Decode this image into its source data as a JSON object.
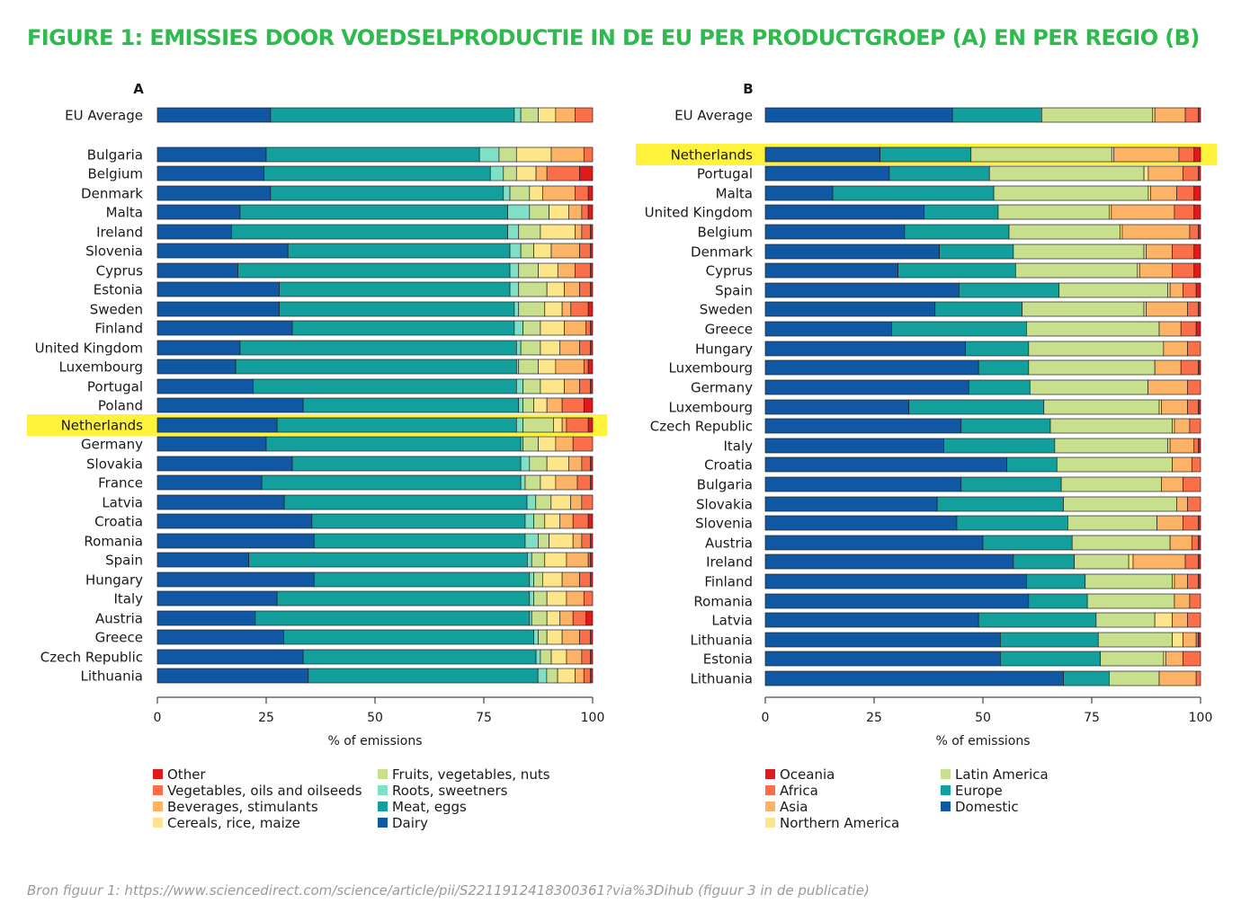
{
  "title": "FIGURE 1: EMISSIES DOOR VOEDSELPRODUCTIE IN DE EU PER PRODUCTGROEP (A) EN PER REGIO (B)",
  "source": "Bron figuur 1: https://www.sciencedirect.com/science/article/pii/S2211912418300361?via%3Dihub (figuur 3 in de publicatie)",
  "colors": {
    "highlight": "#fff23a"
  },
  "chart_data": [
    {
      "type": "bar",
      "orientation": "horizontal",
      "stacked": true,
      "panel_label": "A",
      "xlabel": "% of emissions",
      "xlim": [
        0,
        100
      ],
      "xticks": [
        0,
        25,
        50,
        75,
        100
      ],
      "highlight": "Netherlands",
      "categories": [
        "EU Average",
        "Bulgaria",
        "Belgium",
        "Denmark",
        "Malta",
        "Ireland",
        "Slovenia",
        "Cyprus",
        "Estonia",
        "Sweden",
        "Finland",
        "United Kingdom",
        "Luxembourg",
        "Portugal",
        "Poland",
        "Netherlands",
        "Germany",
        "Slovakia",
        "France",
        "Latvia",
        "Croatia",
        "Romania",
        "Spain",
        "Hungary",
        "Italy",
        "Austria",
        "Greece",
        "Czech Republic",
        "Lithuania"
      ],
      "series": [
        {
          "name": "Dairy",
          "color": "#1058a4",
          "values": [
            26,
            25,
            24.5,
            26,
            19,
            17,
            30,
            18.5,
            28,
            28,
            31,
            19,
            18,
            22,
            33.5,
            27.5,
            25,
            31,
            24,
            29,
            35.5,
            36,
            21,
            36,
            27.5,
            22.5,
            29,
            33.5,
            34.5
          ]
        },
        {
          "name": "Meat, eggs",
          "color": "#13a09c",
          "values": [
            56,
            49,
            52,
            53.5,
            61.5,
            63.5,
            51,
            62.5,
            53,
            54,
            51,
            63.5,
            64.5,
            60.5,
            49.5,
            55,
            58.5,
            52.5,
            59.5,
            55.5,
            49,
            48.5,
            64,
            49.5,
            58,
            63,
            57.5,
            53.5,
            52.5
          ]
        },
        {
          "name": "Roots, sweetners",
          "color": "#7fe0c6",
          "values": [
            1.5,
            4.5,
            3,
            1.5,
            5,
            2.5,
            2.5,
            2,
            2,
            1,
            2,
            1,
            0.5,
            1.5,
            1,
            1.5,
            0.5,
            2,
            1,
            2,
            2,
            3,
            1,
            1,
            1,
            0.5,
            1,
            1,
            2
          ]
        },
        {
          "name": "Fruits, vegetables, nuts",
          "color": "#c8e08e",
          "values": [
            4,
            4,
            3,
            4.5,
            4.5,
            5,
            3,
            4.5,
            6.5,
            6,
            4,
            4.5,
            4.5,
            4,
            2.5,
            7,
            3.5,
            4,
            3.5,
            3.5,
            2.5,
            2.5,
            3,
            2,
            3,
            3.5,
            2,
            2.5,
            2.5
          ]
        },
        {
          "name": "Cereals, rice, maize",
          "color": "#fde68a",
          "values": [
            4,
            8,
            4.5,
            3,
            4.5,
            8,
            4,
            4.5,
            4,
            4,
            5.5,
            4.5,
            4,
            5.5,
            3,
            2,
            4,
            5,
            3.5,
            4.5,
            3.5,
            5.5,
            5,
            4.5,
            4.5,
            3,
            3.5,
            3.5,
            4
          ]
        },
        {
          "name": "Beverages, stimulants",
          "color": "#fdb366",
          "values": [
            4.5,
            7.5,
            2.5,
            7.5,
            3,
            1.5,
            6.5,
            4,
            3.5,
            2,
            5,
            4.5,
            6.5,
            3.5,
            3.5,
            1,
            4,
            3,
            5,
            2.5,
            3,
            2,
            5,
            4,
            4,
            3,
            4,
            3.5,
            2
          ]
        },
        {
          "name": "Vegetables, oils and oilseeds",
          "color": "#fb6e4a",
          "values": [
            4,
            2,
            7.5,
            3,
            1.5,
            2,
            2.5,
            3.5,
            2.5,
            4,
            1,
            2.5,
            1,
            2.5,
            5,
            5,
            4.5,
            2,
            3,
            2.5,
            3.5,
            2,
            0.5,
            2.5,
            2,
            3,
            2.5,
            2,
            1.5
          ]
        },
        {
          "name": "Other",
          "color": "#e01a1a",
          "values": [
            0,
            0,
            3,
            1,
            1,
            0.5,
            0.5,
            0.5,
            0.5,
            1,
            0.5,
            0.5,
            1,
            0.5,
            2,
            1,
            0,
            0.5,
            0.5,
            0,
            1,
            0.5,
            0.5,
            0.5,
            0,
            1.5,
            0.5,
            0.5,
            0.5
          ]
        }
      ],
      "legend": {
        "columns": [
          [
            "Other",
            "Vegetables, oils and oilseeds",
            "Beverages, stimulants",
            "Cereals, rice, maize"
          ],
          [
            "Fruits, vegetables, nuts",
            "Roots, sweetners",
            "Meat, eggs",
            "Dairy"
          ]
        ]
      }
    },
    {
      "type": "bar",
      "orientation": "horizontal",
      "stacked": true,
      "panel_label": "B",
      "xlabel": "% of emissions",
      "xlim": [
        0,
        100
      ],
      "xticks": [
        0,
        25,
        50,
        75,
        100
      ],
      "highlight": "Netherlands",
      "categories": [
        "EU Average",
        "Netherlands",
        "Portugal",
        "Malta",
        "United Kingdom",
        "Belgium",
        "Denmark",
        "Cyprus",
        "Spain",
        "Sweden",
        "Greece",
        "Hungary",
        "Luxembourg",
        "Germany",
        "Luxembourg",
        "Czech Republic",
        "Italy",
        "Croatia",
        "Bulgaria",
        "Slovakia",
        "Slovenia",
        "Austria",
        "Ireland",
        "Finland",
        "Romania",
        "Latvia",
        "Lithuania",
        "Estonia",
        "Lithuania"
      ],
      "series": [
        {
          "name": "Domestic",
          "color": "#1058a4",
          "values": [
            43,
            26.5,
            28.5,
            15.5,
            36.5,
            32,
            40,
            30.5,
            44.5,
            39,
            29,
            46,
            49,
            46.5,
            33,
            45,
            41,
            55.5,
            45,
            39.5,
            44,
            50,
            57,
            60,
            60.5,
            49,
            54,
            54,
            68.5
          ]
        },
        {
          "name": "Europe",
          "color": "#13a09c",
          "values": [
            20.5,
            21,
            23,
            37,
            17,
            24,
            17,
            27,
            23,
            20,
            31,
            14.5,
            11.5,
            14,
            31,
            20.5,
            25.5,
            11.5,
            23,
            29,
            25.5,
            20.5,
            14,
            13.5,
            13.5,
            27,
            22.5,
            23,
            10.5
          ]
        },
        {
          "name": "Latin America",
          "color": "#c8e08e",
          "values": [
            25.5,
            32.5,
            35.5,
            35.5,
            25.5,
            25.5,
            30,
            28,
            25,
            28,
            30.5,
            31,
            29,
            27,
            26.5,
            28,
            26,
            26.5,
            23,
            26,
            20.5,
            22.5,
            12.5,
            20,
            20,
            13.5,
            17,
            14.5,
            11.5
          ]
        },
        {
          "name": "Northern America",
          "color": "#fde68a",
          "values": [
            0.5,
            0.5,
            1,
            0.5,
            0.5,
            0.5,
            0.5,
            0.5,
            0.5,
            0.5,
            0,
            0,
            0,
            0,
            0.5,
            0.5,
            0.5,
            0,
            0,
            0,
            0,
            0,
            1,
            0.5,
            0,
            4,
            2.5,
            0.5,
            0
          ]
        },
        {
          "name": "Asia",
          "color": "#fdb366",
          "values": [
            7,
            15,
            8,
            6,
            14.5,
            15.5,
            6,
            7.5,
            3,
            9.5,
            5,
            5.5,
            6,
            9,
            6,
            3.5,
            5.5,
            4.5,
            5,
            2.5,
            6,
            5,
            12,
            3,
            3.5,
            3.5,
            3,
            4,
            8.5
          ]
        },
        {
          "name": "Africa",
          "color": "#fb6e4a",
          "values": [
            3,
            3.5,
            3.5,
            4,
            4.5,
            2,
            5,
            5,
            3,
            2.5,
            3.5,
            3,
            4,
            3,
            2.5,
            2.5,
            1,
            2,
            4,
            3,
            3.5,
            1.5,
            3,
            2.5,
            2.5,
            3,
            0.5,
            4,
            1
          ]
        },
        {
          "name": "Oceania",
          "color": "#e01a1a",
          "values": [
            0.5,
            1.5,
            0.5,
            1.5,
            1.5,
            0.5,
            1.5,
            1.5,
            1,
            0.5,
            1,
            0,
            0.5,
            0,
            0.5,
            0,
            0.5,
            0,
            0,
            0,
            0.5,
            0.5,
            0.5,
            0.5,
            0,
            0,
            0.5,
            0,
            0
          ]
        }
      ],
      "legend": {
        "columns": [
          [
            "Oceania",
            "Africa",
            "Asia",
            "Northern America"
          ],
          [
            "Latin America",
            "Europe",
            "Domestic"
          ]
        ]
      }
    }
  ]
}
